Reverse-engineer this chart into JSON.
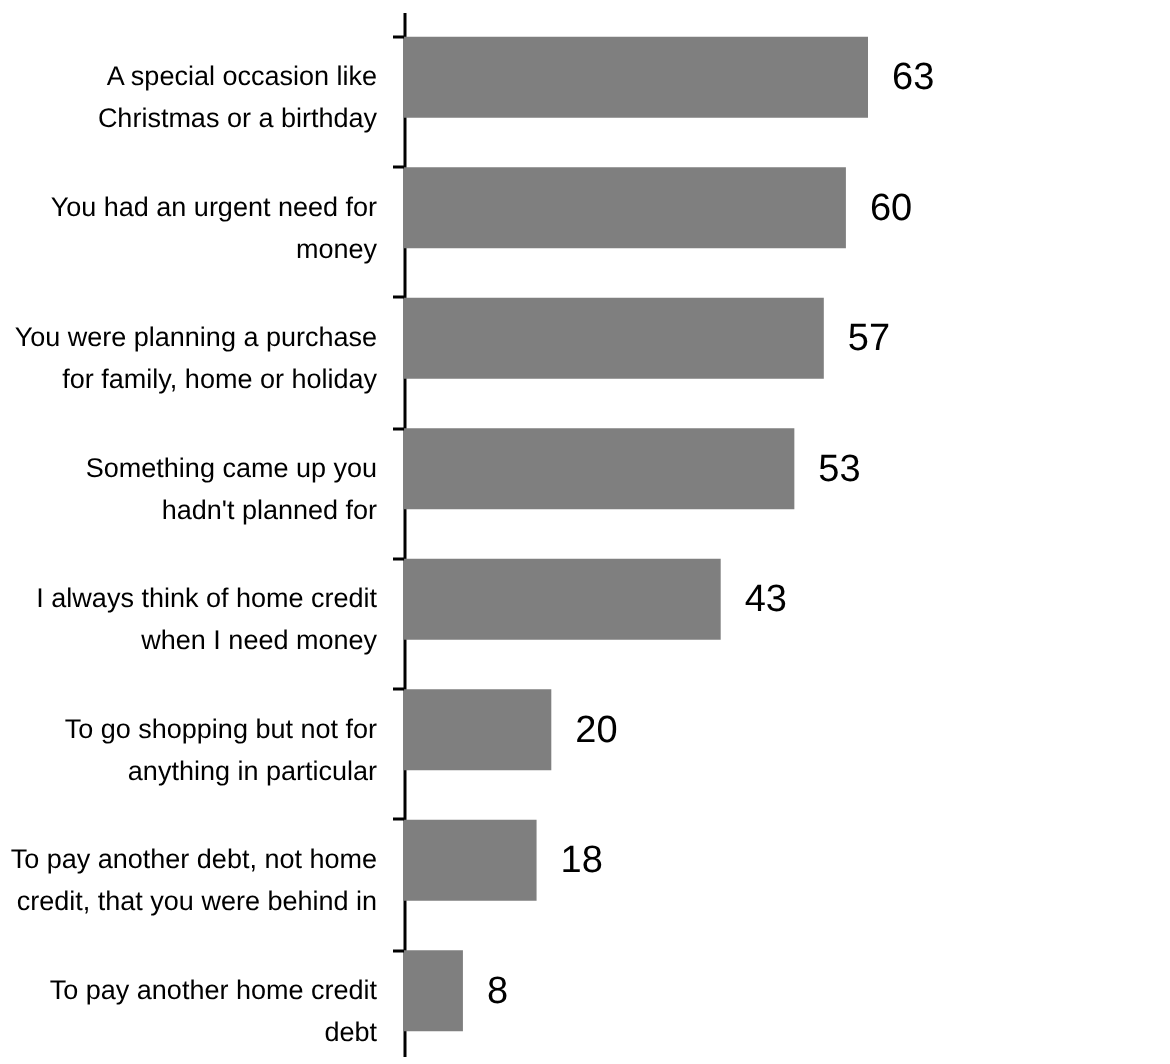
{
  "chart_data": {
    "type": "bar",
    "orientation": "horizontal",
    "data_labels": true,
    "color": "#7f7f7f",
    "categories": [
      "A special occasion like\nChristmas or a birthday",
      "You had an urgent need for\nmoney",
      "You were planning a purchase\nfor family, home or holiday",
      "Something came up you\nhadn't planned for",
      "I always think of home credit\nwhen I need money",
      "To go shopping but not for\nanything in particular",
      "To pay another debt, not home\ncredit, that you were behind in",
      "To pay another home credit\ndebt"
    ],
    "values": [
      63,
      60,
      57,
      53,
      43,
      20,
      18,
      8
    ]
  }
}
